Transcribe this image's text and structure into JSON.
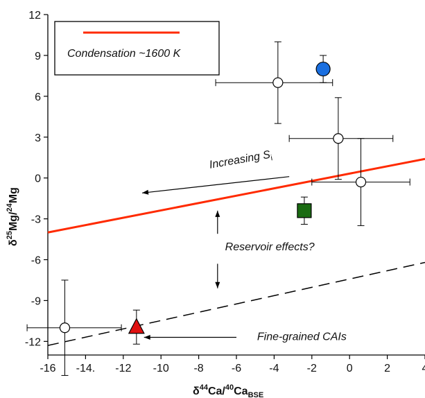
{
  "chart_data": {
    "type": "scatter",
    "title": "",
    "xlabel": {
      "main": "δ",
      "sup1": "44",
      "mid": "Ca/",
      "sup2": "40",
      "tail": "Ca",
      "sub": "BSE"
    },
    "ylabel": {
      "main": "δ",
      "sup1": "25",
      "mid": "Mg/",
      "sup2": "24",
      "tail": "Mg"
    },
    "xlim": [
      -16,
      4
    ],
    "ylim": [
      -13,
      12
    ],
    "xticks": [
      {
        "v": -16,
        "label": "-16"
      },
      {
        "v": -14,
        "label": "-14."
      },
      {
        "v": -12,
        "label": "-12"
      },
      {
        "v": -10,
        "label": "-10"
      },
      {
        "v": -8,
        "label": "-8"
      },
      {
        "v": -6,
        "label": "-6"
      },
      {
        "v": -4,
        "label": "-4"
      },
      {
        "v": -2,
        "label": "-2"
      },
      {
        "v": 0,
        "label": "0"
      },
      {
        "v": 2,
        "label": "2"
      },
      {
        "v": 4,
        "label": "4"
      }
    ],
    "yticks": [
      {
        "v": 12,
        "label": "12"
      },
      {
        "v": 9,
        "label": "9"
      },
      {
        "v": 6,
        "label": "6"
      },
      {
        "v": 3,
        "label": "3"
      },
      {
        "v": 0,
        "label": "0"
      },
      {
        "v": -3,
        "label": "-3"
      },
      {
        "v": -6,
        "label": "-6"
      },
      {
        "v": -9,
        "label": "-9"
      },
      {
        "v": -12,
        "label": "-12"
      }
    ],
    "legend": {
      "label": "Condensation ~1600 K",
      "color": "#ff2a00",
      "placement": "top-left"
    },
    "lines": [
      {
        "kind": "condensation",
        "style": "solid",
        "color": "#ff2a00",
        "x": [
          -16,
          4
        ],
        "y": [
          -4.0,
          1.4
        ]
      },
      {
        "kind": "trend",
        "style": "dashed",
        "color": "#000000",
        "x": [
          -16,
          4
        ],
        "y": [
          -12.3,
          -6.2
        ]
      }
    ],
    "points": [
      {
        "shape": "circle-open",
        "x": -3.8,
        "y": 7.0,
        "xerr": [
          3.3,
          2.9
        ],
        "yerr": [
          3.0,
          3.0
        ]
      },
      {
        "shape": "circle-open",
        "x": -0.6,
        "y": 2.9,
        "xerr": [
          2.6,
          2.9
        ],
        "yerr": [
          3.0,
          3.0
        ]
      },
      {
        "shape": "circle-open",
        "x": 0.6,
        "y": -0.3,
        "xerr": [
          2.6,
          2.6
        ],
        "yerr": [
          3.2,
          3.2
        ]
      },
      {
        "shape": "circle-open",
        "x": -15.1,
        "y": -11.0,
        "xerr": [
          2.0,
          3.0
        ],
        "yerr": [
          3.5,
          3.5
        ]
      },
      {
        "shape": "circle-filled",
        "color": "#1a6fe0",
        "x": -1.4,
        "y": 8.0,
        "xerr": [
          0,
          0
        ],
        "yerr": [
          1.0,
          1.0
        ]
      },
      {
        "shape": "square-filled",
        "color": "#1a6b12",
        "x": -2.4,
        "y": -2.4,
        "xerr": [
          0,
          0
        ],
        "yerr": [
          1.0,
          1.0
        ]
      },
      {
        "shape": "triangle-filled",
        "color": "#e01010",
        "x": -11.3,
        "y": -11.0,
        "xerr": [
          0,
          0
        ],
        "yerr": [
          1.2,
          1.3
        ]
      }
    ],
    "annotations": [
      {
        "key": "increasing",
        "text": "Increasing S",
        "sub": "i",
        "x": -7.4,
        "y": 0.7,
        "rotate": -10
      },
      {
        "key": "reservoir",
        "text": "Reservoir effects?",
        "x": -6.6,
        "y": -5.3,
        "rotate": 0
      },
      {
        "key": "finegrained",
        "text": "Fine-grained CAIs",
        "x": -4.9,
        "y": -11.9,
        "rotate": 0
      }
    ],
    "arrows": [
      {
        "x1": -3.2,
        "y1": 0.1,
        "x2": -11.0,
        "y2": -1.1
      },
      {
        "x1": -7.0,
        "y1": -4.1,
        "x2": -7.0,
        "y2": -2.4
      },
      {
        "x1": -7.0,
        "y1": -6.3,
        "x2": -7.0,
        "y2": -8.1
      },
      {
        "x1": -6.0,
        "y1": -11.7,
        "x2": -10.9,
        "y2": -11.7
      }
    ],
    "grid": false
  }
}
